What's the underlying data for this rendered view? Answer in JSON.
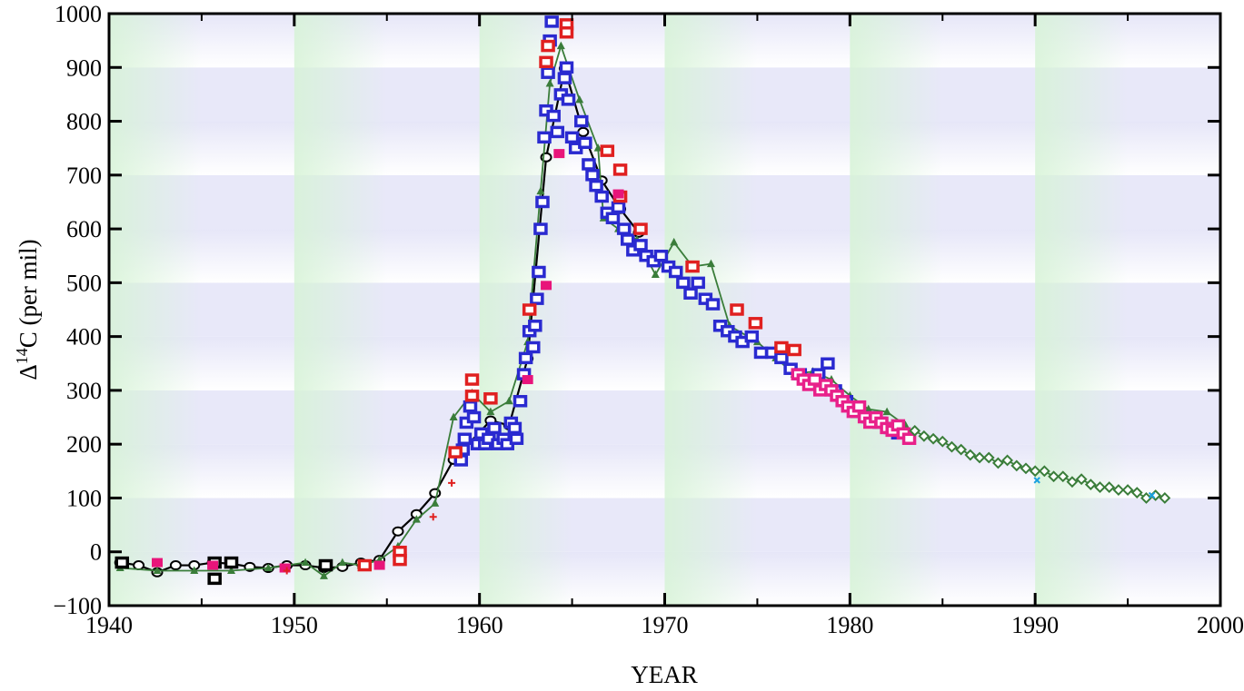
{
  "chart_data": {
    "type": "scatter",
    "title": "",
    "xlabel": "YEAR",
    "ylabel": "Δ14C (per mil)",
    "ylabel_parts": {
      "symbol": "Δ",
      "sup": "14",
      "rest": "C (per mil)"
    },
    "xlim": [
      1940,
      2000
    ],
    "ylim": [
      -100,
      1000
    ],
    "xticks": [
      1940,
      1950,
      1960,
      1970,
      1980,
      1990,
      2000
    ],
    "yticks": [
      -100,
      0,
      100,
      200,
      300,
      400,
      500,
      600,
      700,
      800,
      900,
      1000
    ],
    "ytick_labels": [
      "−100",
      "0",
      "100",
      "200",
      "300",
      "400",
      "500",
      "600",
      "700",
      "800",
      "900",
      "1000"
    ],
    "grid": false,
    "colors": {
      "black": "#000000",
      "green": "#3a7d3a",
      "blue": "#2a2ad0",
      "red": "#e02020",
      "magenta": "#e8157a",
      "pink": "#e8208a",
      "cyan": "#1aa0e0"
    },
    "series": [
      {
        "marker": "circle-line",
        "color": "#000000",
        "points": [
          [
            1940.6,
            -20
          ],
          [
            1941.6,
            -25
          ],
          [
            1942.6,
            -38
          ],
          [
            1943.6,
            -25
          ],
          [
            1944.6,
            -25
          ],
          [
            1945.6,
            -20
          ],
          [
            1946.6,
            -22
          ],
          [
            1947.6,
            -28
          ],
          [
            1948.6,
            -30
          ],
          [
            1949.6,
            -25
          ],
          [
            1950.6,
            -25
          ],
          [
            1951.6,
            -30
          ],
          [
            1952.6,
            -28
          ],
          [
            1953.6,
            -20
          ],
          [
            1954.6,
            -15
          ],
          [
            1955.6,
            38
          ],
          [
            1956.6,
            70
          ],
          [
            1957.6,
            109
          ],
          [
            1958.6,
            171
          ],
          [
            1960.6,
            244
          ],
          [
            1961.6,
            235
          ],
          [
            1962.6,
            359
          ],
          [
            1963.6,
            733
          ],
          [
            1964.6,
            898
          ],
          [
            1965.6,
            780
          ],
          [
            1966.6,
            690
          ],
          [
            1967.6,
            637
          ],
          [
            1968.6,
            593
          ]
        ]
      },
      {
        "marker": "triangle-line",
        "color": "#3a7d3a",
        "points": [
          [
            1940.6,
            -30
          ],
          [
            1942.6,
            -35
          ],
          [
            1944.6,
            -35
          ],
          [
            1946.6,
            -35
          ],
          [
            1948.6,
            -30
          ],
          [
            1950.6,
            -20
          ],
          [
            1951.6,
            -45
          ],
          [
            1952.6,
            -20
          ],
          [
            1953.6,
            -25
          ],
          [
            1954.6,
            -15
          ],
          [
            1955.6,
            10
          ],
          [
            1956.6,
            60
          ],
          [
            1957.6,
            90
          ],
          [
            1958.6,
            250
          ],
          [
            1959.6,
            295
          ],
          [
            1960.6,
            260
          ],
          [
            1961.6,
            280
          ],
          [
            1962.6,
            390
          ],
          [
            1963.3,
            670
          ],
          [
            1963.8,
            870
          ],
          [
            1964.4,
            940
          ],
          [
            1965.4,
            840
          ],
          [
            1966.4,
            750
          ],
          [
            1966.7,
            620
          ],
          [
            1967.5,
            600
          ],
          [
            1968.5,
            580
          ],
          [
            1969.5,
            515
          ],
          [
            1970.5,
            575
          ],
          [
            1971.5,
            530
          ],
          [
            1972.5,
            535
          ],
          [
            1973.5,
            420
          ],
          [
            1975.0,
            390
          ],
          [
            1976.0,
            360
          ],
          [
            1977.0,
            330
          ],
          [
            1978.0,
            335
          ],
          [
            1979.0,
            320
          ],
          [
            1980.0,
            290
          ],
          [
            1981.0,
            265
          ],
          [
            1982.0,
            260
          ],
          [
            1983.0,
            235
          ]
        ]
      },
      {
        "marker": "open-square",
        "color": "#2a2ad0",
        "points": [
          [
            1959.0,
            170
          ],
          [
            1959.1,
            190
          ],
          [
            1959.2,
            210
          ],
          [
            1959.3,
            240
          ],
          [
            1959.5,
            270
          ],
          [
            1959.7,
            250
          ],
          [
            1959.9,
            200
          ],
          [
            1960.1,
            220
          ],
          [
            1960.3,
            200
          ],
          [
            1960.5,
            210
          ],
          [
            1960.8,
            230
          ],
          [
            1961.0,
            200
          ],
          [
            1961.3,
            210
          ],
          [
            1961.5,
            200
          ],
          [
            1961.7,
            240
          ],
          [
            1961.9,
            230
          ],
          [
            1962.0,
            210
          ],
          [
            1962.2,
            280
          ],
          [
            1962.4,
            330
          ],
          [
            1962.5,
            360
          ],
          [
            1962.7,
            410
          ],
          [
            1962.9,
            380
          ],
          [
            1963.0,
            420
          ],
          [
            1963.1,
            470
          ],
          [
            1963.2,
            520
          ],
          [
            1963.3,
            600
          ],
          [
            1963.4,
            650
          ],
          [
            1963.5,
            770
          ],
          [
            1963.6,
            820
          ],
          [
            1963.7,
            890
          ],
          [
            1963.8,
            950
          ],
          [
            1963.9,
            985
          ],
          [
            1964.0,
            810
          ],
          [
            1964.2,
            780
          ],
          [
            1964.4,
            850
          ],
          [
            1964.6,
            880
          ],
          [
            1964.7,
            900
          ],
          [
            1964.8,
            840
          ],
          [
            1965.0,
            770
          ],
          [
            1965.2,
            750
          ],
          [
            1965.5,
            800
          ],
          [
            1965.7,
            760
          ],
          [
            1965.9,
            720
          ],
          [
            1966.1,
            700
          ],
          [
            1966.3,
            680
          ],
          [
            1966.6,
            660
          ],
          [
            1966.9,
            630
          ],
          [
            1967.2,
            620
          ],
          [
            1967.5,
            640
          ],
          [
            1967.8,
            600
          ],
          [
            1968.0,
            580
          ],
          [
            1968.3,
            560
          ],
          [
            1968.7,
            570
          ],
          [
            1969.0,
            550
          ],
          [
            1969.4,
            540
          ],
          [
            1969.8,
            550
          ],
          [
            1970.2,
            530
          ],
          [
            1970.6,
            520
          ],
          [
            1971.0,
            500
          ],
          [
            1971.4,
            480
          ],
          [
            1971.8,
            500
          ],
          [
            1972.2,
            470
          ],
          [
            1972.6,
            460
          ],
          [
            1973.0,
            420
          ],
          [
            1973.4,
            410
          ],
          [
            1973.8,
            400
          ],
          [
            1974.2,
            390
          ],
          [
            1974.7,
            400
          ],
          [
            1975.2,
            370
          ],
          [
            1975.8,
            370
          ],
          [
            1976.3,
            360
          ],
          [
            1976.8,
            340
          ],
          [
            1977.3,
            330
          ],
          [
            1977.8,
            320
          ],
          [
            1978.3,
            330
          ],
          [
            1978.8,
            350
          ],
          [
            1979.2,
            300
          ],
          [
            1979.8,
            280
          ],
          [
            1980.4,
            260
          ],
          [
            1981.0,
            250
          ],
          [
            1981.6,
            240
          ],
          [
            1982.2,
            230
          ],
          [
            1982.6,
            220
          ]
        ]
      },
      {
        "marker": "open-square",
        "color": "#e02020",
        "points": [
          [
            1953.8,
            -25
          ],
          [
            1955.7,
            0
          ],
          [
            1955.7,
            -15
          ],
          [
            1958.7,
            185
          ],
          [
            1959.6,
            320
          ],
          [
            1959.6,
            290
          ],
          [
            1960.6,
            285
          ],
          [
            1962.7,
            450
          ],
          [
            1963.6,
            910
          ],
          [
            1963.7,
            940
          ],
          [
            1964.7,
            980
          ],
          [
            1964.7,
            965
          ],
          [
            1966.9,
            745
          ],
          [
            1967.6,
            710
          ],
          [
            1967.6,
            660
          ],
          [
            1968.7,
            600
          ],
          [
            1971.5,
            530
          ],
          [
            1973.9,
            450
          ],
          [
            1974.9,
            425
          ],
          [
            1976.3,
            380
          ],
          [
            1977.0,
            375
          ]
        ]
      },
      {
        "marker": "open-square",
        "color": "#000000",
        "points": [
          [
            1940.7,
            -20
          ],
          [
            1945.7,
            -50
          ],
          [
            1945.7,
            -20
          ],
          [
            1946.6,
            -20
          ],
          [
            1951.7,
            -25
          ]
        ]
      },
      {
        "marker": "filled-square",
        "color": "#e8157a",
        "points": [
          [
            1942.6,
            -20
          ],
          [
            1945.6,
            -25
          ],
          [
            1949.5,
            -30
          ],
          [
            1954.6,
            -25
          ],
          [
            1962.6,
            320
          ],
          [
            1963.6,
            495
          ],
          [
            1964.3,
            740
          ],
          [
            1967.5,
            665
          ]
        ]
      },
      {
        "marker": "plus",
        "color": "#e02020",
        "points": [
          [
            1949.6,
            -35
          ],
          [
            1957.5,
            65
          ],
          [
            1958.5,
            128
          ]
        ]
      },
      {
        "marker": "open-square",
        "color": "#e8208a",
        "points": [
          [
            1977.2,
            330
          ],
          [
            1977.5,
            320
          ],
          [
            1977.8,
            310
          ],
          [
            1978.1,
            320
          ],
          [
            1978.4,
            300
          ],
          [
            1978.7,
            310
          ],
          [
            1979.0,
            300
          ],
          [
            1979.3,
            290
          ],
          [
            1979.6,
            280
          ],
          [
            1979.9,
            270
          ],
          [
            1980.2,
            260
          ],
          [
            1980.5,
            270
          ],
          [
            1980.8,
            250
          ],
          [
            1981.1,
            240
          ],
          [
            1981.4,
            250
          ],
          [
            1981.7,
            240
          ],
          [
            1982.0,
            230
          ],
          [
            1982.3,
            225
          ],
          [
            1982.6,
            235
          ],
          [
            1982.9,
            220
          ],
          [
            1983.2,
            210
          ]
        ]
      },
      {
        "marker": "diamond-line",
        "color": "#3a7d3a",
        "points": [
          [
            1983.5,
            225
          ],
          [
            1984.0,
            215
          ],
          [
            1984.5,
            210
          ],
          [
            1985.0,
            205
          ],
          [
            1985.5,
            195
          ],
          [
            1986.0,
            190
          ],
          [
            1986.5,
            180
          ],
          [
            1987.0,
            175
          ],
          [
            1987.5,
            175
          ],
          [
            1988.0,
            165
          ],
          [
            1988.5,
            170
          ],
          [
            1989.0,
            160
          ],
          [
            1989.5,
            155
          ],
          [
            1990.0,
            150
          ],
          [
            1990.5,
            150
          ],
          [
            1991.0,
            140
          ],
          [
            1991.5,
            140
          ],
          [
            1992.0,
            130
          ],
          [
            1992.5,
            135
          ],
          [
            1993.0,
            125
          ],
          [
            1993.5,
            120
          ],
          [
            1994.0,
            120
          ],
          [
            1994.5,
            115
          ],
          [
            1995.0,
            115
          ],
          [
            1995.5,
            110
          ],
          [
            1996.0,
            100
          ],
          [
            1996.5,
            105
          ],
          [
            1997.0,
            100
          ]
        ]
      },
      {
        "marker": "x",
        "color": "#1aa0e0",
        "points": [
          [
            1990.1,
            133
          ],
          [
            1996.3,
            105
          ]
        ]
      }
    ]
  }
}
